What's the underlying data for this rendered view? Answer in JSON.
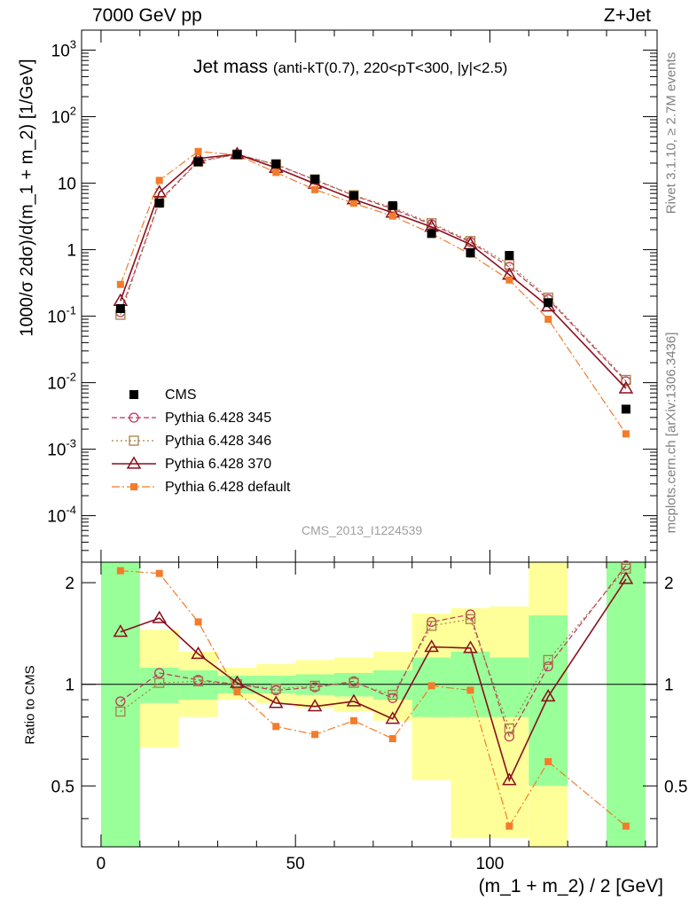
{
  "header": {
    "energy": "7000 GeV pp",
    "process": "Z+Jet"
  },
  "side": {
    "rivet": "Rivet 3.1.10, ≥ 2.7M events",
    "mcplots": "mcplots.cern.ch [arXiv:1306.3436]"
  },
  "chart_data": {
    "type": "scatter",
    "title_main": "Jet mass",
    "title_sub": "(anti-kT(0.7), 220<pT<300, |y|<2.5)",
    "analysis_id": "CMS_2013_I1224539",
    "xlabel": "(m_1 + m_2) / 2 [GeV]",
    "ylabel": "1000/σ 2dσ)/d(m_1 + m_2) [1/GeV]",
    "ratio_ylabel": "Ratio to CMS",
    "xlim": [
      -5,
      143
    ],
    "ylim": [
      2e-05,
      2000
    ],
    "yscale": "log",
    "ratio_ylim": [
      0.33,
      2.3
    ],
    "x_ticks": [
      0,
      50,
      100
    ],
    "y_ticks": [
      "10^-4",
      "10^-3",
      "10^-2",
      "10^-1",
      "1",
      "10",
      "10^2",
      "10^3"
    ],
    "ratio_ticks": [
      "0.5",
      "1",
      "2"
    ],
    "x": [
      5,
      15,
      25,
      35,
      45,
      55,
      65,
      75,
      85,
      95,
      105,
      115,
      135
    ],
    "bins": [
      [
        0,
        10
      ],
      [
        10,
        20
      ],
      [
        20,
        30
      ],
      [
        30,
        40
      ],
      [
        40,
        50
      ],
      [
        50,
        60
      ],
      [
        60,
        70
      ],
      [
        70,
        80
      ],
      [
        80,
        90
      ],
      [
        90,
        100
      ],
      [
        100,
        110
      ],
      [
        110,
        120
      ],
      [
        130,
        140
      ]
    ],
    "band_green": [
      [
        0.3,
        3.0
      ],
      [
        0.88,
        1.12
      ],
      [
        0.9,
        1.1
      ],
      [
        0.94,
        1.06
      ],
      [
        0.94,
        1.06
      ],
      [
        0.93,
        1.07
      ],
      [
        0.92,
        1.08
      ],
      [
        0.9,
        1.1
      ],
      [
        0.8,
        1.2
      ],
      [
        0.8,
        1.25
      ],
      [
        0.8,
        1.2
      ],
      [
        0.5,
        1.6
      ],
      [
        0.3,
        3.0
      ]
    ],
    "band_yellow": [
      [
        0.3,
        3.0
      ],
      [
        0.65,
        1.45
      ],
      [
        0.8,
        1.25
      ],
      [
        0.9,
        1.12
      ],
      [
        0.88,
        1.15
      ],
      [
        0.85,
        1.18
      ],
      [
        0.83,
        1.2
      ],
      [
        0.78,
        1.25
      ],
      [
        0.52,
        1.62
      ],
      [
        0.35,
        1.68
      ],
      [
        0.35,
        1.7
      ],
      [
        0.3,
        3.0
      ],
      [
        0.3,
        3.0
      ]
    ],
    "series": [
      {
        "name": "CMS",
        "color": "#000000",
        "marker": "square-filled",
        "dash": "none",
        "values": [
          0.13,
          5.0,
          21.0,
          27.0,
          19.5,
          11.5,
          6.5,
          4.6,
          1.75,
          0.9,
          0.82,
          0.16,
          0.004
        ],
        "ratio": null
      },
      {
        "name": "Pythia 6.428 345",
        "color": "#c0365a",
        "marker": "circle-open",
        "dash": "6,3",
        "values": [
          0.115,
          5.4,
          21.5,
          27.2,
          19.0,
          11.2,
          6.5,
          4.1,
          2.4,
          1.3,
          0.55,
          0.18,
          0.0105
        ],
        "ratio": [
          0.89,
          1.08,
          1.03,
          1.0,
          0.96,
          0.98,
          1.02,
          0.91,
          1.53,
          1.61,
          0.7,
          1.13,
          2.25
        ]
      },
      {
        "name": "Pythia 6.428 346",
        "color": "#a2804a",
        "marker": "square-open",
        "dash": "2,3",
        "values": [
          0.105,
          5.2,
          21.0,
          27.0,
          19.2,
          11.4,
          6.6,
          4.3,
          2.5,
          1.35,
          0.6,
          0.19,
          0.011
        ],
        "ratio": [
          0.83,
          1.01,
          1.02,
          1.0,
          0.97,
          0.99,
          1.01,
          0.93,
          1.49,
          1.56,
          0.74,
          1.18,
          2.2
        ]
      },
      {
        "name": "Pythia 6.428 370",
        "color": "#8a0f1c",
        "marker": "triangle-open",
        "dash": "none",
        "values": [
          0.17,
          7.3,
          23.5,
          27.3,
          17.0,
          9.8,
          5.7,
          3.6,
          2.2,
          1.2,
          0.42,
          0.14,
          0.0082
        ],
        "ratio": [
          1.43,
          1.57,
          1.23,
          1.01,
          0.88,
          0.86,
          0.89,
          0.79,
          1.29,
          1.28,
          0.52,
          0.92,
          2.05
        ]
      },
      {
        "name": "Pythia 6.428 default",
        "color": "#f27c2a",
        "marker": "square-filled-small",
        "dash": "9,3,2,3",
        "values": [
          0.3,
          11.0,
          30.0,
          26.5,
          14.5,
          8.0,
          5.0,
          3.2,
          1.75,
          0.85,
          0.35,
          0.09,
          0.0017
        ],
        "ratio": [
          2.17,
          2.13,
          1.53,
          0.95,
          0.75,
          0.71,
          0.78,
          0.69,
          0.99,
          0.96,
          0.38,
          0.59,
          0.38
        ]
      }
    ]
  }
}
